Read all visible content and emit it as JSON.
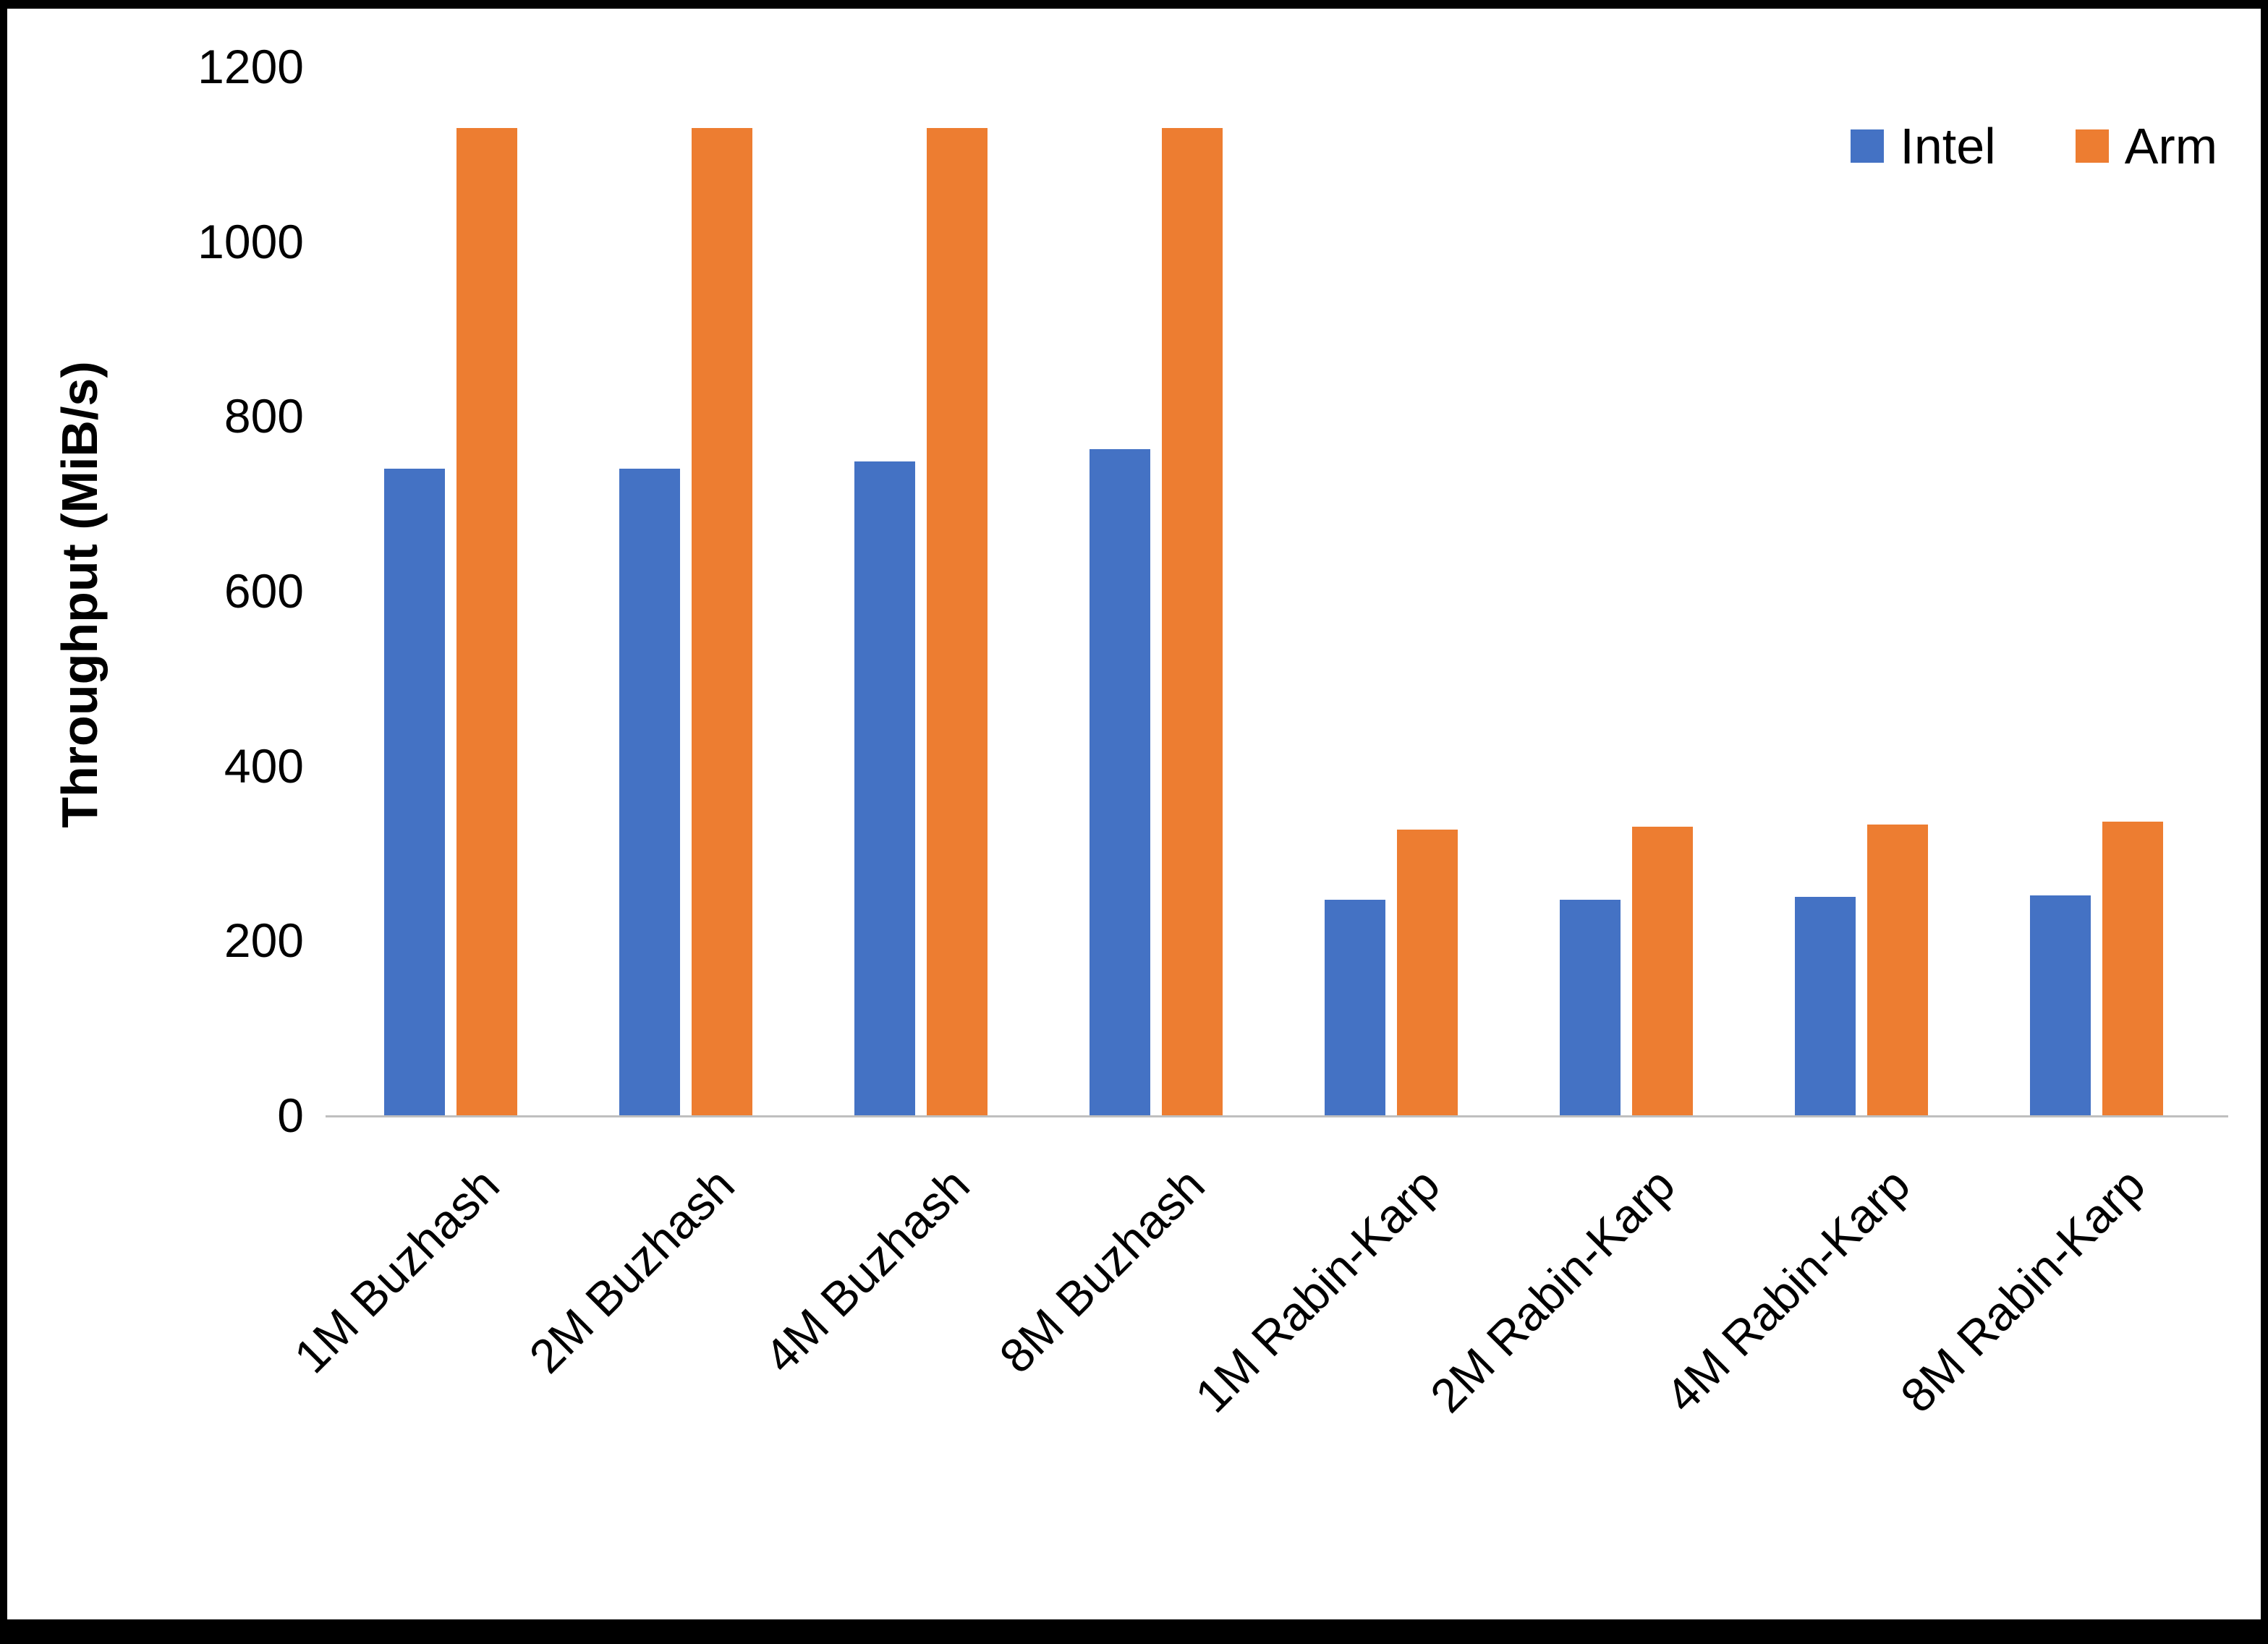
{
  "chart_data": {
    "type": "bar",
    "title": "",
    "xlabel": "",
    "ylabel": "Throughput (MiB/s)",
    "ylim": [
      0,
      1200
    ],
    "ytick_step": 200,
    "yticks": [
      0,
      200,
      400,
      600,
      800,
      1000,
      1200
    ],
    "grid": false,
    "legend_position": "top-right",
    "categories": [
      "1M Buzhash",
      "2M Buzhash",
      "4M Buzhash",
      "8M Buzhash",
      "1M Rabin-Karp",
      "2M Rabin-Karp",
      "4M Rabin-Karp",
      "8M Rabin-Karp"
    ],
    "series": [
      {
        "name": "Intel",
        "color": "#4472C4",
        "values": [
          740,
          740,
          748,
          762,
          247,
          247,
          250,
          252
        ]
      },
      {
        "name": "Arm",
        "color": "#ED7D31",
        "values": [
          1130,
          1130,
          1130,
          1130,
          327,
          330,
          333,
          336
        ]
      }
    ]
  },
  "colors": {
    "background": "#FFFFFF",
    "frame": "#000000",
    "axis_line": "#BFBFBF",
    "text": "#000000"
  }
}
